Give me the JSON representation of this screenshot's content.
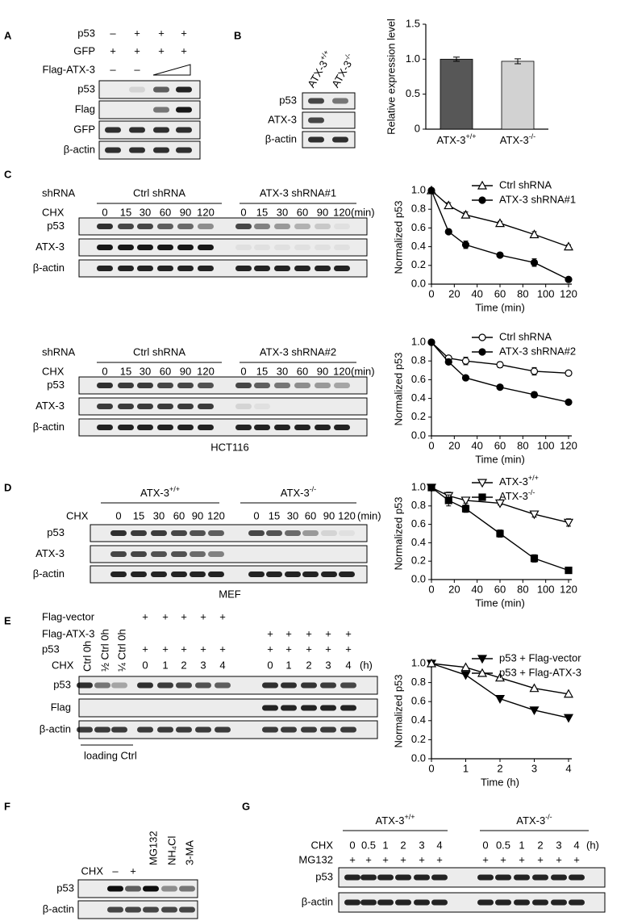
{
  "chart_data": [
    {
      "type": "bar",
      "ylabel": "Relative expression level",
      "categories": [
        "ATX-3+/+",
        "ATX-3-/-"
      ],
      "values": [
        1.0,
        0.97
      ],
      "errors": [
        0.03,
        0.035
      ],
      "colors": [
        "#575757",
        "#d2d2d2"
      ],
      "ylim": [
        0,
        1.5
      ],
      "yticks": [
        0,
        0.5,
        {
          "value": 1,
          "label": "1.0"
        },
        1.5
      ]
    },
    {
      "type": "line",
      "xlabel": "Time (min)",
      "ylabel": "Normalized p53",
      "x": [
        0,
        15,
        30,
        60,
        90,
        120
      ],
      "xlim": [
        0,
        120
      ],
      "xticks": [
        0,
        20,
        40,
        60,
        80,
        100,
        120
      ],
      "ylim": [
        0,
        1
      ],
      "yticks": [
        {
          "value": 0,
          "label": "0.0"
        },
        0.2,
        0.4,
        0.6,
        0.8,
        {
          "value": 1,
          "label": "1.0"
        }
      ],
      "legend": "upper right",
      "series": [
        {
          "name": "Ctrl shRNA",
          "color": "#000000",
          "marker": "triangle-up-open",
          "values": [
            1,
            0.84,
            0.74,
            0.65,
            0.53,
            0.4
          ],
          "errors": [
            0,
            0.03,
            0.03,
            0.02,
            0.03,
            0.02
          ]
        },
        {
          "name": "ATX-3 shRNA#1",
          "color": "#000000",
          "marker": "circle-filled",
          "values": [
            1,
            0.56,
            0.42,
            0.31,
            0.23,
            0.05
          ],
          "errors": [
            0,
            0.02,
            0.04,
            0.02,
            0.04,
            0.01
          ]
        }
      ]
    },
    {
      "type": "line",
      "xlabel": "Time (min)",
      "ylabel": "Normalized p53",
      "x": [
        0,
        15,
        30,
        60,
        90,
        120
      ],
      "xlim": [
        0,
        120
      ],
      "xticks": [
        0,
        20,
        40,
        60,
        80,
        100,
        120
      ],
      "ylim": [
        0,
        1
      ],
      "yticks": [
        {
          "value": 0,
          "label": "0.0"
        },
        0.2,
        0.4,
        0.6,
        0.8,
        {
          "value": 1,
          "label": "1.0"
        }
      ],
      "legend": "upper right",
      "series": [
        {
          "name": "Ctrl shRNA",
          "color": "#000000",
          "marker": "circle-open",
          "values": [
            1,
            0.83,
            0.8,
            0.76,
            0.69,
            0.67
          ],
          "errors": [
            0,
            0.02,
            0.04,
            0.03,
            0.04,
            0.02
          ]
        },
        {
          "name": "ATX-3 shRNA#2",
          "color": "#000000",
          "marker": "circle-filled",
          "values": [
            1,
            0.79,
            0.62,
            0.52,
            0.44,
            0.36
          ],
          "errors": [
            0,
            0.02,
            0.02,
            0.02,
            0.03,
            0.02
          ]
        }
      ]
    },
    {
      "type": "line",
      "xlabel": "Time (min)",
      "ylabel": "Normalized p53",
      "x": [
        0,
        15,
        30,
        60,
        90,
        120
      ],
      "xlim": [
        0,
        120
      ],
      "xticks": [
        0,
        20,
        40,
        60,
        80,
        100,
        120
      ],
      "ylim": [
        0,
        1
      ],
      "yticks": [
        {
          "value": 0,
          "label": "0.0"
        },
        0.2,
        0.4,
        0.6,
        0.8,
        {
          "value": 1,
          "label": "1.0"
        }
      ],
      "legend": "upper right",
      "series": [
        {
          "name": "ATX-3+/+",
          "color": "#000000",
          "marker": "triangle-down-open",
          "values": [
            1,
            0.91,
            0.86,
            0.83,
            0.71,
            0.62
          ],
          "errors": [
            0,
            0.04,
            0.03,
            0.02,
            0.03,
            0.04
          ]
        },
        {
          "name": "ATX-3-/-",
          "color": "#000000",
          "marker": "square-filled",
          "values": [
            1,
            0.86,
            0.77,
            0.5,
            0.23,
            0.1
          ],
          "errors": [
            0,
            0.06,
            0.04,
            0.04,
            0.04,
            0.02
          ]
        }
      ]
    },
    {
      "type": "line",
      "xlabel": "Time (h)",
      "ylabel": "Normalized p53",
      "x": [
        0,
        1,
        2,
        3,
        4
      ],
      "xlim": [
        0,
        4
      ],
      "xticks": [
        0,
        1,
        2,
        3,
        4
      ],
      "ylim": [
        0,
        1
      ],
      "yticks": [
        {
          "value": 0,
          "label": "0.0"
        },
        0.2,
        0.4,
        0.6,
        0.8,
        {
          "value": 1,
          "label": "1.0"
        }
      ],
      "legend": "upper right",
      "series": [
        {
          "name": "p53 + Flag-vector",
          "color": "#000000",
          "marker": "triangle-down-filled",
          "values": [
            1,
            0.88,
            0.63,
            0.51,
            0.43
          ]
        },
        {
          "name": "p53 + Flag-ATX-3",
          "color": "#000000",
          "marker": "triangle-up-open",
          "values": [
            1,
            0.96,
            0.85,
            0.74,
            0.68
          ]
        }
      ]
    }
  ],
  "panel_a": {
    "letter": "A",
    "conditions": [
      {
        "label": "p53",
        "marks": [
          "–",
          "+",
          "+",
          "+"
        ]
      },
      {
        "label": "GFP",
        "marks": [
          "+",
          "+",
          "+",
          "+"
        ]
      },
      {
        "label": "Flag-ATX-3",
        "marks": [
          "–",
          "–"
        ]
      }
    ],
    "blots": [
      "p53",
      "Flag",
      "GFP",
      "β-actin"
    ]
  },
  "panel_b": {
    "letter": "B",
    "lanes": [
      "ATX-3+/+",
      "ATX-3-/-"
    ],
    "blots": [
      "p53",
      "ATX-3",
      "β-actin"
    ]
  },
  "panel_c": {
    "letter": "C",
    "blocks": [
      {
        "row_label": "shRNA",
        "treatment": "CHX",
        "unit": "(min)",
        "groups": [
          {
            "name": "Ctrl shRNA",
            "times": [
              0,
              15,
              30,
              60,
              90,
              120
            ]
          },
          {
            "name": "ATX-3 shRNA#1",
            "times": [
              0,
              15,
              30,
              60,
              90,
              120
            ]
          }
        ],
        "blots": [
          "p53",
          "ATX-3",
          "β-actin"
        ]
      },
      {
        "row_label": "shRNA",
        "treatment": "CHX",
        "unit": "(min)",
        "groups": [
          {
            "name": "Ctrl shRNA",
            "times": [
              0,
              15,
              30,
              60,
              90,
              120
            ]
          },
          {
            "name": "ATX-3 shRNA#2",
            "times": [
              0,
              15,
              30,
              60,
              90,
              120
            ]
          }
        ],
        "blots": [
          "p53",
          "ATX-3",
          "β-actin"
        ],
        "cell_line": "HCT116"
      }
    ]
  },
  "panel_d": {
    "letter": "D",
    "treatment": "CHX",
    "unit": "(min)",
    "groups": [
      {
        "name": "ATX-3+/+",
        "times": [
          0,
          15,
          30,
          60,
          90,
          120
        ]
      },
      {
        "name": "ATX-3-/-",
        "times": [
          0,
          15,
          30,
          60,
          90,
          120
        ]
      }
    ],
    "blots": [
      "p53",
      "ATX-3",
      "β-actin"
    ],
    "cell_line": "MEF"
  },
  "panel_e": {
    "letter": "E",
    "conditions": [
      {
        "label": "Flag-vector",
        "marks": [
          "+",
          "+",
          "+",
          "+",
          "+"
        ]
      },
      {
        "label": "Flag-ATX-3",
        "marks": [
          "+",
          "+",
          "+",
          "+",
          "+"
        ]
      },
      {
        "label": "p53",
        "marks": [
          "+",
          "+",
          "+",
          "+",
          "+",
          "+",
          "+",
          "+",
          "+",
          "+"
        ]
      }
    ],
    "controls": [
      "Ctrl 0h",
      "½ Ctrl 0h",
      "¼ Ctrl 0h"
    ],
    "treatment": "CHX",
    "times": [
      0,
      1,
      2,
      3,
      4,
      0,
      1,
      2,
      3,
      4
    ],
    "unit": "(h)",
    "blots": [
      "p53",
      "Flag",
      "β-actin"
    ],
    "loading_label": "loading Ctrl"
  },
  "panel_f": {
    "letter": "F",
    "treatments": [
      "MG132",
      "NH₄Cl",
      "3-MA"
    ],
    "chx": {
      "label": "CHX",
      "marks": [
        "–",
        "+"
      ]
    },
    "blots": [
      "p53",
      "β-actin"
    ]
  },
  "panel_g": {
    "letter": "G",
    "treatment": "CHX",
    "unit": "(h)",
    "groups": [
      {
        "name": "ATX-3+/+",
        "times": [
          0,
          0.5,
          1,
          2,
          3,
          4
        ]
      },
      {
        "name": "ATX-3-/-",
        "times": [
          0,
          0.5,
          1,
          2,
          3,
          4
        ]
      }
    ],
    "condition": {
      "label": "MG132",
      "marks": [
        "+",
        "+",
        "+",
        "+",
        "+",
        "+",
        "+",
        "+",
        "+",
        "+",
        "+",
        "+"
      ]
    },
    "blots": [
      "p53",
      "β-actin"
    ]
  }
}
